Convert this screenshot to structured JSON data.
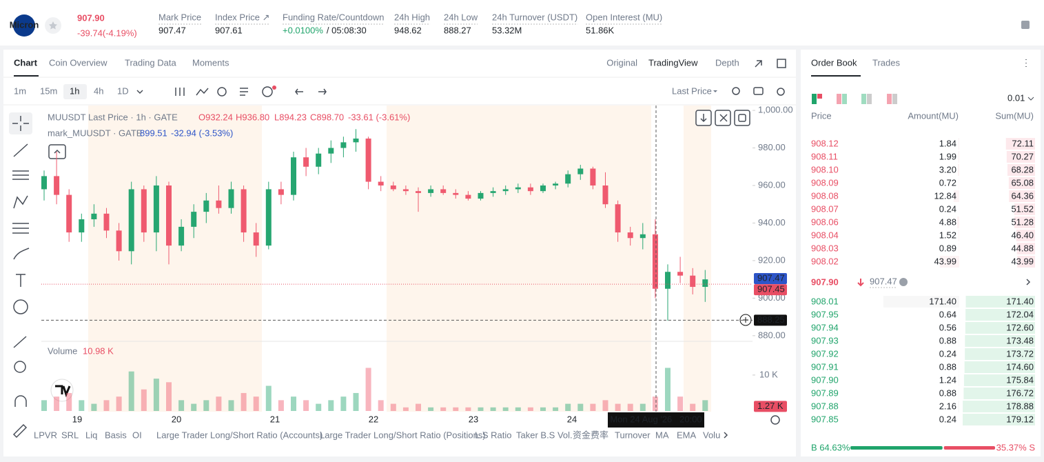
{
  "header": {
    "logo": "Micron",
    "price": "907.90",
    "change": "-39.74(-4.19%)",
    "stats": [
      {
        "label": "Mark Price",
        "value": "907.47"
      },
      {
        "label": "Index Price ↗",
        "value": "907.61"
      },
      {
        "label": "Funding Rate/Countdown",
        "value": "+0.0100%",
        "extra": "/ 05:08:30"
      },
      {
        "label": "24h High",
        "value": "948.62"
      },
      {
        "label": "24h Low",
        "value": "888.27"
      },
      {
        "label": "24h Turnover (USDT)",
        "value": "53.32M"
      },
      {
        "label": "Open Interest (MU)",
        "value": "51.86K"
      }
    ]
  },
  "tabs": [
    "Chart",
    "Coin Overview",
    "Trading Data",
    "Moments"
  ],
  "view_tabs": [
    "Original",
    "TradingView",
    "Depth"
  ],
  "intervals": [
    "1m",
    "15m",
    "1h",
    "4h",
    "1D"
  ],
  "price_type": "Last Price",
  "chart": {
    "legend_title": "MUUSDT Last Price · 1h · GATE",
    "ohlc": [
      "O932.24",
      "H936.80",
      "L894.23",
      "C898.70",
      "-33.61 (-3.61%)"
    ],
    "mark_legend": "mark_MUUSDT · GATE",
    "mark_values": [
      "899.51",
      "-32.94 (-3.53%)"
    ],
    "volume_label": "Volume",
    "volume_value": "10.98 K",
    "ylim": [
      877,
      1002.6
    ],
    "yticks": [
      {
        "value": 1000,
        "label": "1,000.00"
      },
      {
        "value": 980,
        "label": "980.00"
      },
      {
        "value": 960,
        "label": "960.00"
      },
      {
        "value": 940,
        "label": "940.00"
      },
      {
        "value": 920,
        "label": "920.00"
      },
      {
        "value": 900,
        "label": "900.00"
      },
      {
        "value": 880,
        "label": "880.00"
      }
    ],
    "mark_tag": {
      "value": 907.47,
      "label": "907.47"
    },
    "last_tag": {
      "value": 907.45,
      "label": "907.45"
    },
    "cross_tag": {
      "value": 888.25,
      "label": "888.25"
    },
    "vlim": [
      0,
      19000
    ],
    "vticks": [
      {
        "value": 10000,
        "label": "10 K"
      }
    ],
    "volume_tag": {
      "value": 1270,
      "label": "1.27 K"
    },
    "x_labels": [
      "19",
      "20",
      "21",
      "22",
      "23",
      "24"
    ],
    "crosshair_label": "Mon 24 Aug '26   20:00",
    "candles": [
      [
        958,
        968,
        952,
        965
      ],
      [
        965,
        978,
        950,
        955
      ],
      [
        955,
        958,
        930,
        935
      ],
      [
        935,
        945,
        930,
        942
      ],
      [
        942,
        950,
        938,
        945
      ],
      [
        945,
        948,
        932,
        936
      ],
      [
        936,
        940,
        920,
        925
      ],
      [
        925,
        962,
        918,
        958
      ],
      [
        958,
        960,
        930,
        935
      ],
      [
        935,
        965,
        925,
        960
      ],
      [
        960,
        962,
        918,
        928
      ],
      [
        928,
        942,
        925,
        938
      ],
      [
        938,
        950,
        932,
        946
      ],
      [
        946,
        956,
        940,
        952
      ],
      [
        952,
        960,
        945,
        948
      ],
      [
        948,
        962,
        945,
        958
      ],
      [
        958,
        960,
        930,
        935
      ],
      [
        935,
        940,
        922,
        928
      ],
      [
        928,
        962,
        926,
        958
      ],
      [
        958,
        962,
        950,
        955
      ],
      [
        955,
        978,
        952,
        975
      ],
      [
        975,
        980,
        965,
        970
      ],
      [
        970,
        980,
        966,
        977
      ],
      [
        977,
        984,
        972,
        980
      ],
      [
        980,
        986,
        975,
        983
      ],
      [
        983,
        990,
        978,
        985
      ],
      [
        985,
        986,
        958,
        962
      ],
      [
        962,
        965,
        957,
        960
      ],
      [
        960,
        962,
        957,
        958
      ],
      [
        958,
        960,
        955,
        957
      ],
      [
        957,
        959,
        946,
        956
      ],
      [
        956,
        960,
        954,
        958
      ],
      [
        958,
        960,
        955,
        956
      ],
      [
        956,
        958,
        953,
        955
      ],
      [
        955,
        957,
        952,
        953
      ],
      [
        953,
        957,
        952,
        956
      ],
      [
        956,
        959,
        954,
        957
      ],
      [
        957,
        960,
        955,
        958
      ],
      [
        958,
        961,
        956,
        959
      ],
      [
        959,
        961,
        955,
        957
      ],
      [
        957,
        961,
        956,
        960
      ],
      [
        960,
        962,
        958,
        961
      ],
      [
        961,
        968,
        959,
        966
      ],
      [
        966,
        971,
        963,
        969
      ],
      [
        969,
        970,
        958,
        960
      ],
      [
        960,
        967,
        948,
        950
      ],
      [
        950,
        952,
        930,
        935
      ],
      [
        935,
        938,
        928,
        932
      ],
      [
        932,
        940,
        926,
        934
      ],
      [
        934,
        942,
        900,
        905
      ],
      [
        905,
        918,
        888,
        914
      ],
      [
        914,
        922,
        908,
        912
      ],
      [
        912,
        916,
        902,
        906
      ],
      [
        906,
        915,
        898,
        910
      ]
    ],
    "volumes": [
      3000,
      4000,
      5000,
      3000,
      2000,
      3000,
      4000,
      11000,
      6000,
      9000,
      8000,
      3000,
      2000,
      3000,
      4000,
      3000,
      5000,
      4000,
      7000,
      3000,
      4000,
      3000,
      2000,
      3000,
      4000,
      5000,
      12000,
      3000,
      2000,
      1000,
      2000,
      1000,
      1000,
      1000,
      1000,
      1000,
      1000,
      1000,
      1000,
      1000,
      1000,
      1000,
      2000,
      2000,
      2000,
      3000,
      2000,
      2000,
      2000,
      4000,
      12000,
      4000,
      2000,
      3000
    ]
  },
  "indicators": [
    "LPVR",
    "SRL",
    "Liq",
    "Basis",
    "OI",
    "Large Trader Long/Short Ratio (Accounts)",
    "Large Trader Long/Short Ratio (Positions)",
    "L.S Ratio",
    "Taker B.S Vol.",
    "资金费率",
    "Turnover",
    "MA",
    "EMA",
    "Volu"
  ],
  "order_book": {
    "tabs": [
      "Order Book",
      "Trades"
    ],
    "precision": "0.01",
    "columns": [
      "Price",
      "Amount(MU)",
      "Sum(MU)"
    ],
    "asks": [
      [
        908.12,
        1.84,
        72.11
      ],
      [
        908.11,
        1.99,
        70.27
      ],
      [
        908.1,
        3.2,
        68.28
      ],
      [
        908.09,
        0.72,
        65.08
      ],
      [
        908.08,
        12.84,
        64.36
      ],
      [
        908.07,
        0.24,
        51.52
      ],
      [
        908.06,
        4.88,
        51.28
      ],
      [
        908.04,
        1.52,
        46.4
      ],
      [
        908.03,
        0.89,
        44.88
      ],
      [
        908.02,
        43.99,
        43.99
      ]
    ],
    "ask_labels": [
      [
        "908.12",
        "1.84",
        "72.11"
      ],
      [
        "908.11",
        "1.99",
        "70.27"
      ],
      [
        "908.10",
        "3.20",
        "68.28"
      ],
      [
        "908.09",
        "0.72",
        "65.08"
      ],
      [
        "908.08",
        "12.84",
        "64.36"
      ],
      [
        "908.07",
        "0.24",
        "51.52"
      ],
      [
        "908.06",
        "4.88",
        "51.28"
      ],
      [
        "908.04",
        "1.52",
        "46.40"
      ],
      [
        "908.03",
        "0.89",
        "44.88"
      ],
      [
        "908.02",
        "43.99",
        "43.99"
      ]
    ],
    "last_price": "907.90",
    "mark_price": "907.47",
    "bids": [
      [
        908.01,
        171.4,
        171.4
      ],
      [
        907.95,
        0.64,
        172.04
      ],
      [
        907.94,
        0.56,
        172.6
      ],
      [
        907.93,
        0.88,
        173.48
      ],
      [
        907.92,
        0.24,
        173.72
      ],
      [
        907.91,
        0.88,
        174.6
      ],
      [
        907.9,
        1.24,
        175.84
      ],
      [
        907.89,
        0.88,
        176.72
      ],
      [
        907.88,
        2.16,
        178.88
      ],
      [
        907.85,
        0.24,
        179.12
      ]
    ],
    "bid_labels": [
      [
        "908.01",
        "171.40",
        "171.40"
      ],
      [
        "907.95",
        "0.64",
        "172.04"
      ],
      [
        "907.94",
        "0.56",
        "172.60"
      ],
      [
        "907.93",
        "0.88",
        "173.48"
      ],
      [
        "907.92",
        "0.24",
        "173.72"
      ],
      [
        "907.91",
        "0.88",
        "174.60"
      ],
      [
        "907.90",
        "1.24",
        "175.84"
      ],
      [
        "907.89",
        "0.88",
        "176.72"
      ],
      [
        "907.88",
        "2.16",
        "178.88"
      ],
      [
        "907.85",
        "0.24",
        "179.12"
      ]
    ],
    "buy": {
      "value": 64.63,
      "label": "B 64.63%"
    },
    "sell": {
      "value": 35.37,
      "label": "35.37% S"
    }
  }
}
